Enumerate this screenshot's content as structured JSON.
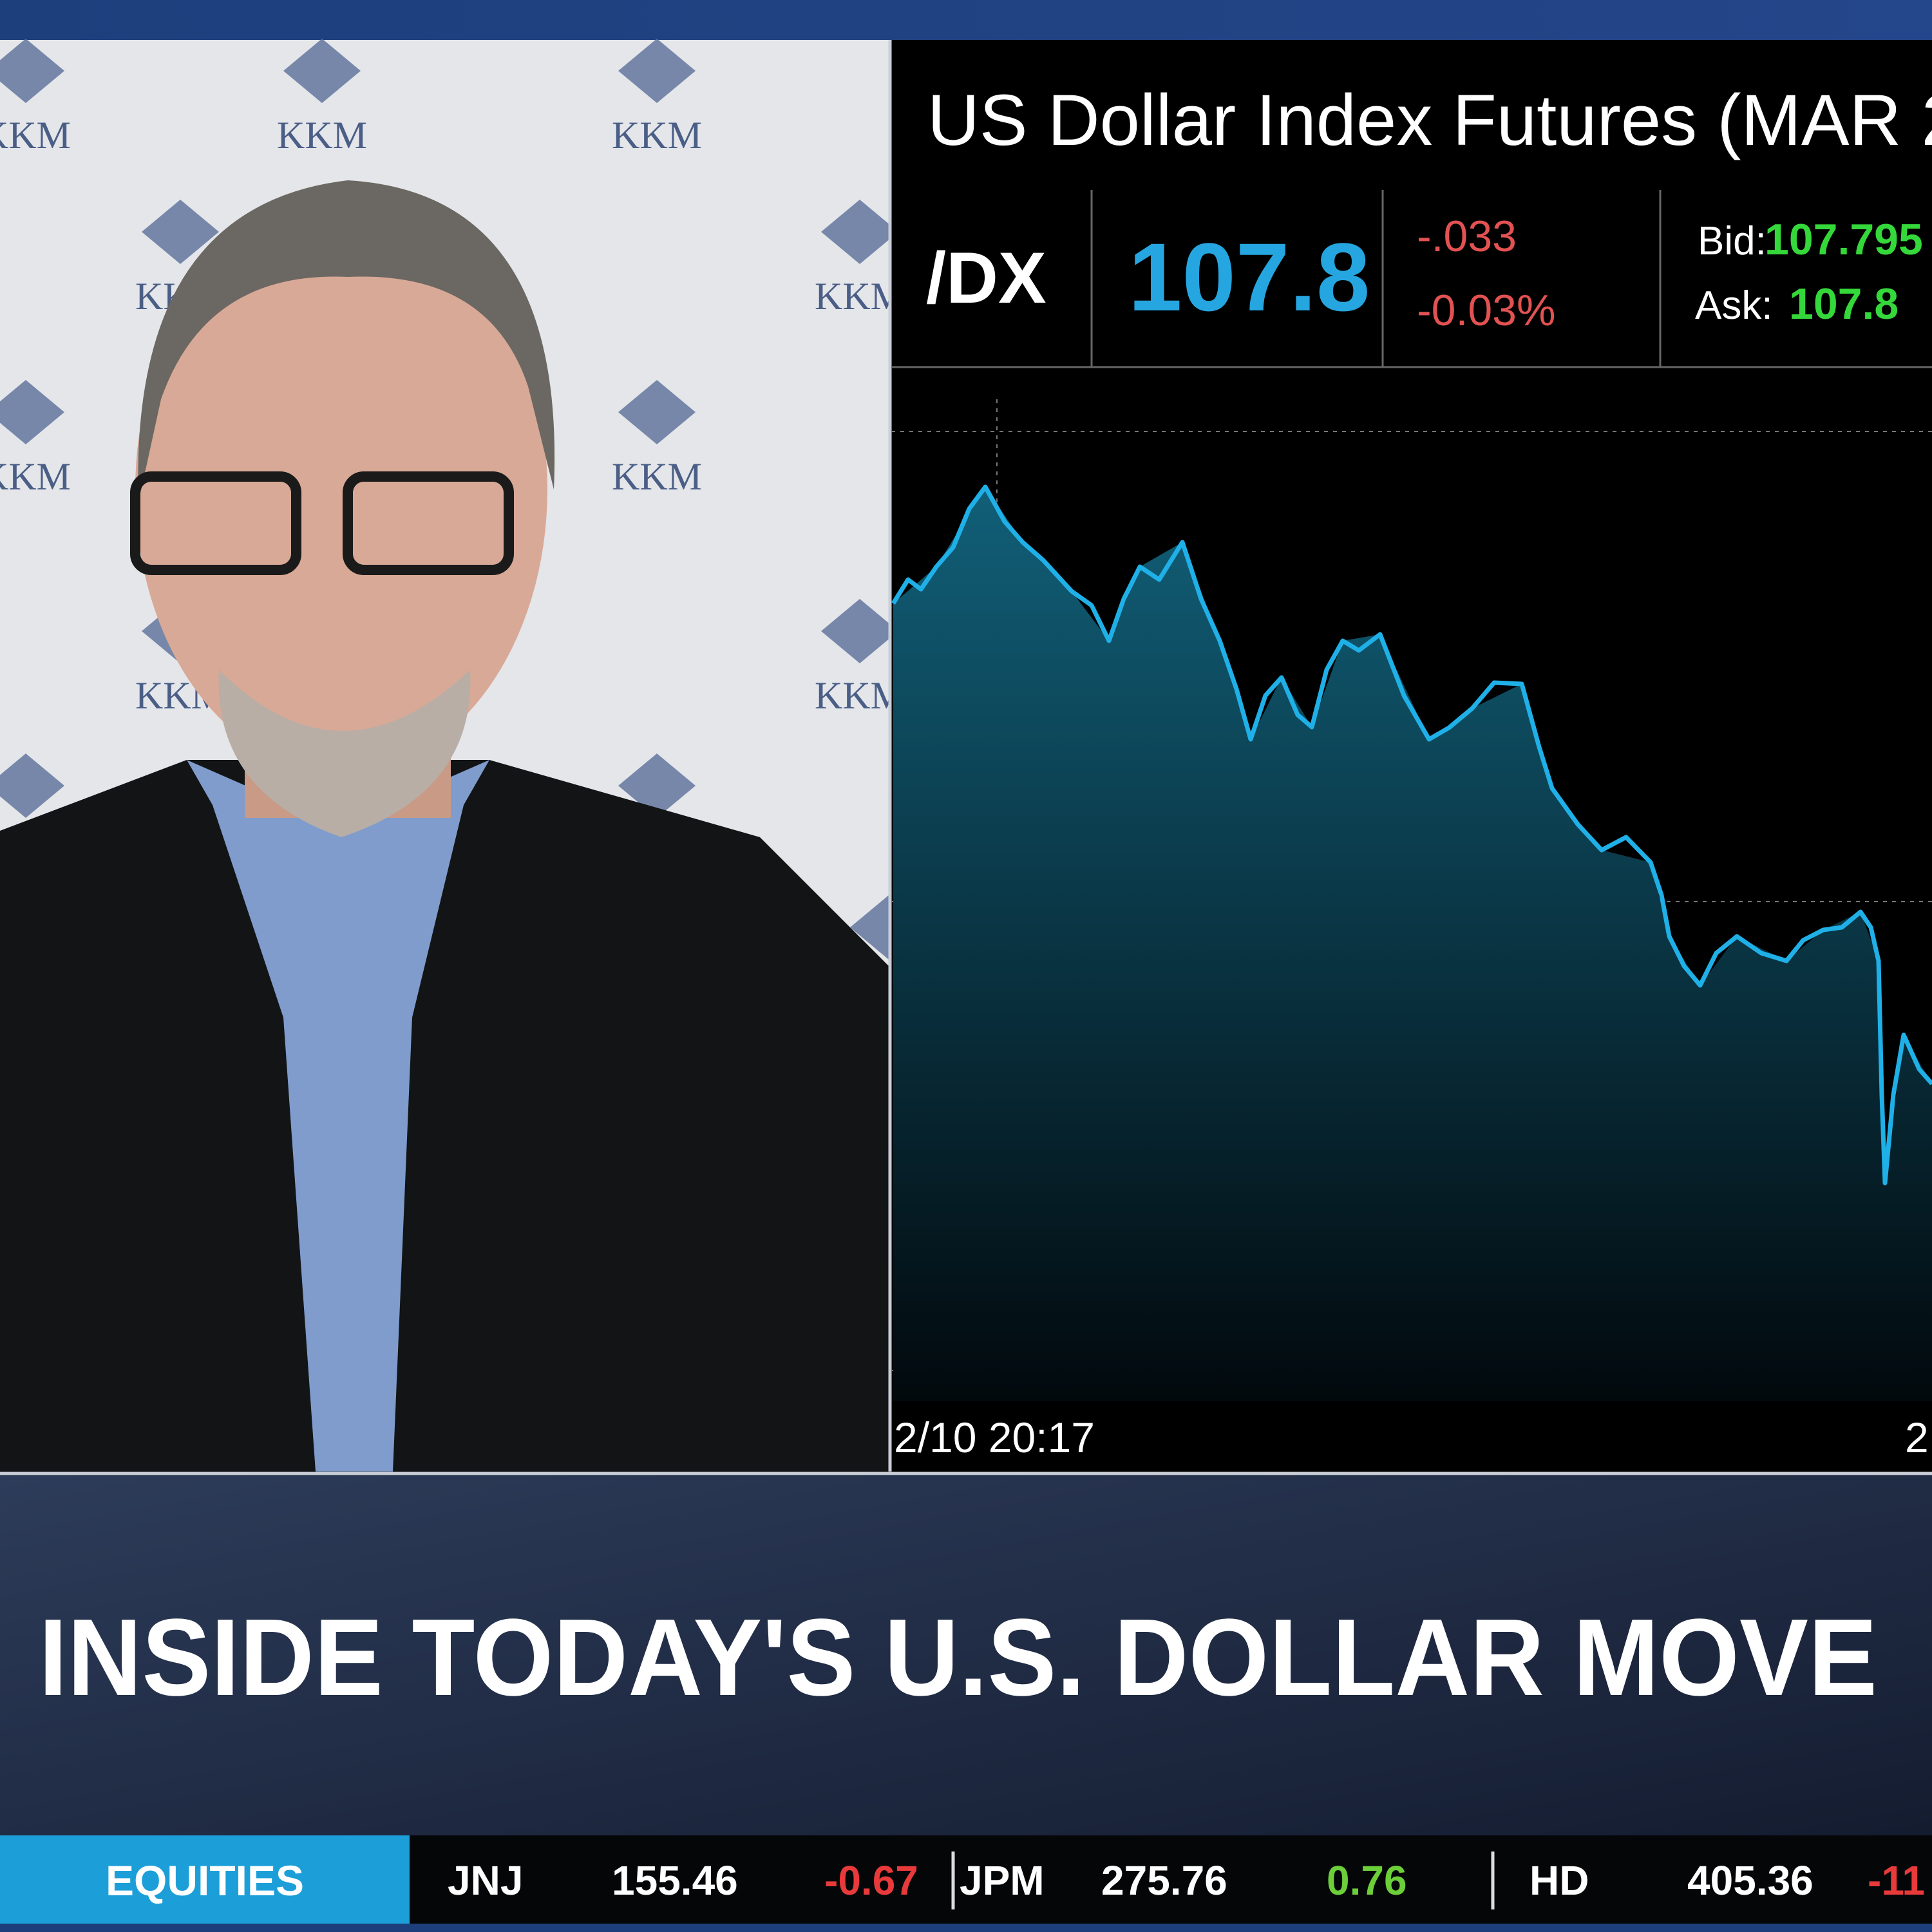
{
  "quote": {
    "title": "US Dollar Index Futures (MAR 2",
    "symbol": "/DX",
    "last": "107.8",
    "change": "-.033",
    "change_pct": "-0.03%",
    "bid_label": "Bid:",
    "bid": "107.795",
    "ask_label": "Ask:",
    "ask": "107.8"
  },
  "chart": {
    "start_time": "2/10 20:17",
    "end_time": "2"
  },
  "backdrop": {
    "logo_text": "KKM"
  },
  "headline": "INSIDE TODAY'S U.S. DOLLAR MOVE",
  "ticker": {
    "section": "EQUITIES",
    "items": [
      {
        "symbol": "JNJ",
        "price": "155.46",
        "change": "-0.67"
      },
      {
        "symbol": "JPM",
        "price": "275.76",
        "change": "0.76"
      },
      {
        "symbol": "HD",
        "price": "405.36",
        "change": "-11"
      }
    ]
  }
}
